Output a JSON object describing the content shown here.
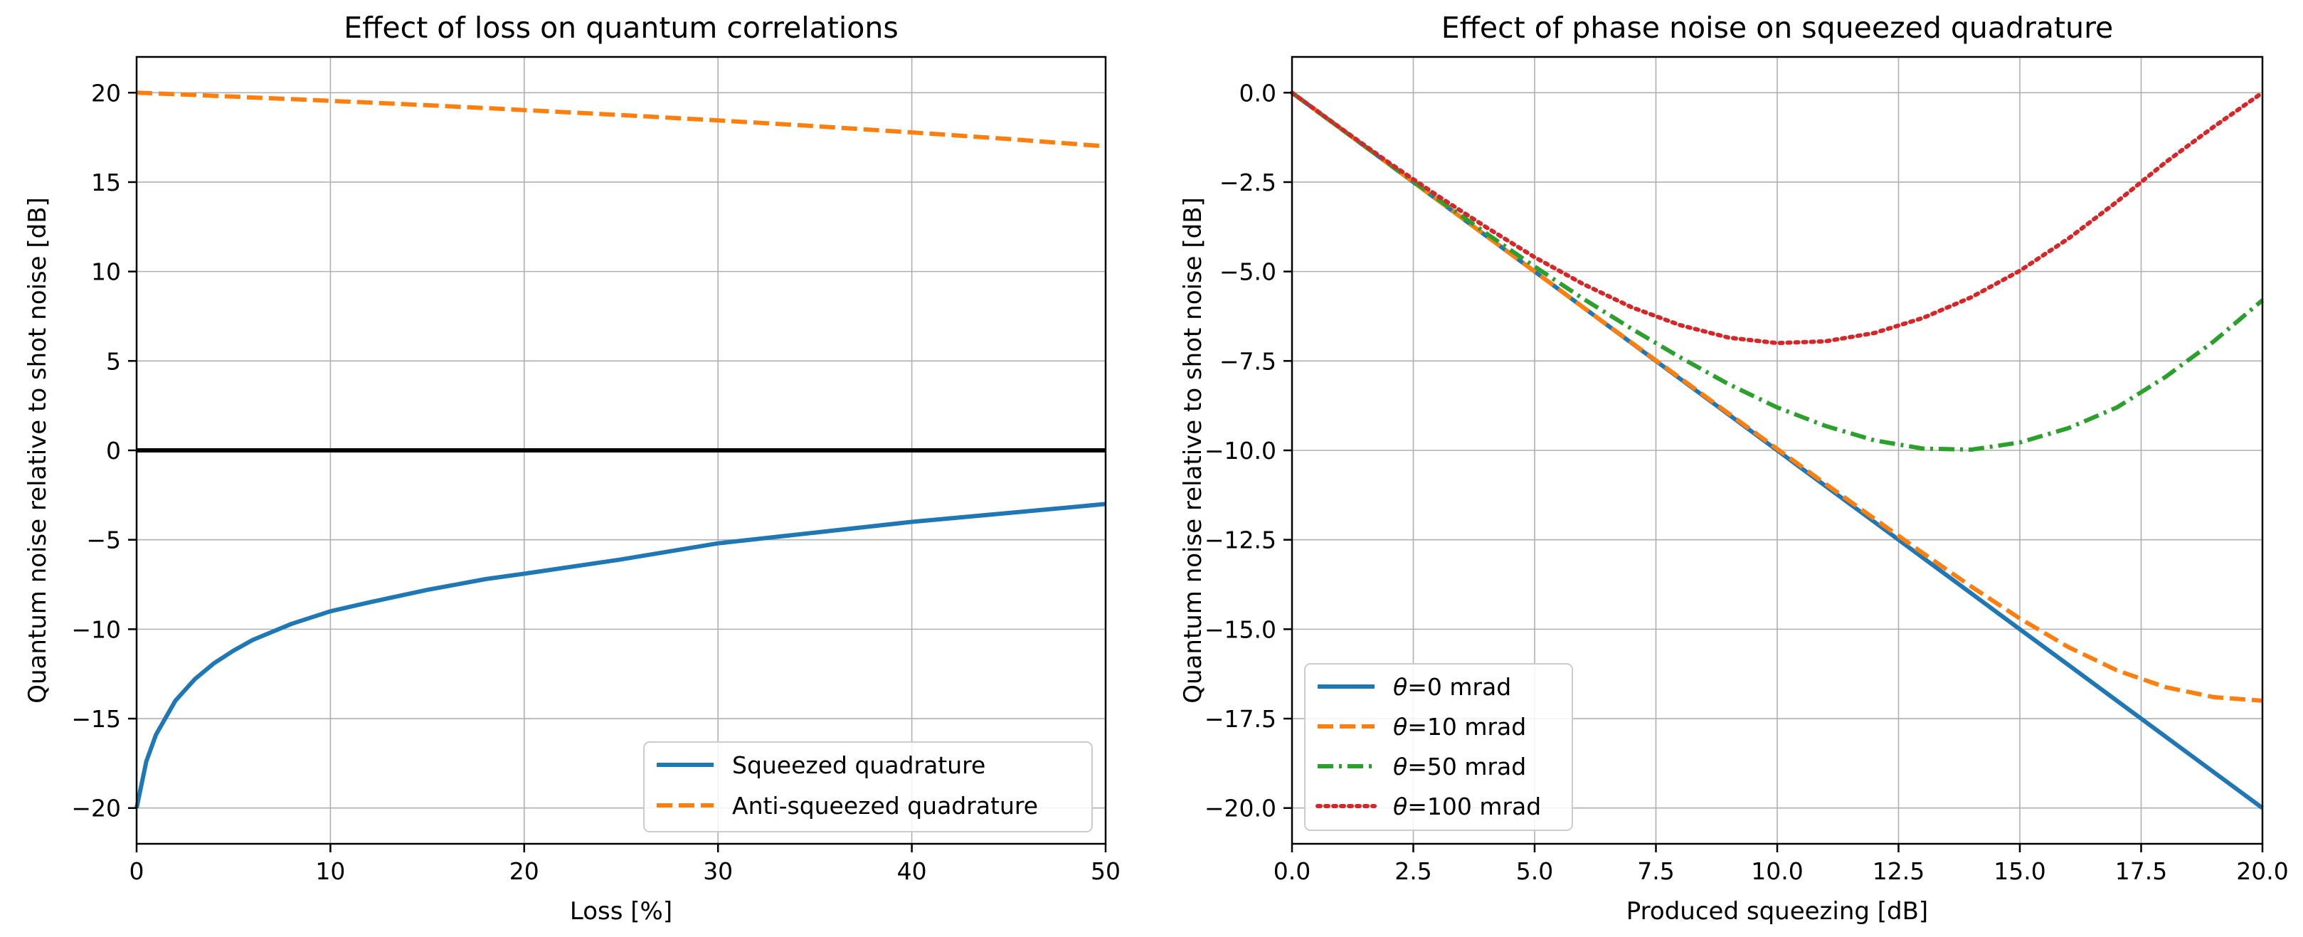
{
  "chart_data": [
    {
      "type": "line",
      "title": "Effect of loss on quantum correlations",
      "xlabel": "Loss [%]",
      "ylabel": "Quantum noise relative to shot noise [dB]",
      "xlim": [
        0,
        50
      ],
      "ylim": [
        -22,
        22
      ],
      "grid": true,
      "legend_location": "lower-right",
      "xticks": [
        0,
        10,
        20,
        30,
        40,
        50
      ],
      "xticklabels": [
        "0",
        "10",
        "20",
        "30",
        "40",
        "50"
      ],
      "yticks": [
        -20,
        -15,
        -10,
        -5,
        0,
        5,
        10,
        15,
        20
      ],
      "yticklabels": [
        "−20",
        "−15",
        "−10",
        "−5",
        "0",
        "5",
        "10",
        "15",
        "20"
      ],
      "reference_line": {
        "y": 0,
        "color": "#000000"
      },
      "x": [
        0,
        0.5,
        1,
        2,
        3,
        4,
        5,
        6,
        8,
        10,
        12,
        15,
        18,
        20,
        25,
        30,
        35,
        40,
        45,
        50
      ],
      "series": [
        {
          "name": "Squeezed quadrature",
          "color": "#1f77b4",
          "style": "solid",
          "values": [
            -20.0,
            -17.4,
            -15.9,
            -14.0,
            -12.8,
            -11.9,
            -11.2,
            -10.6,
            -9.7,
            -9.0,
            -8.5,
            -7.8,
            -7.2,
            -6.9,
            -6.1,
            -5.2,
            -4.6,
            -4.0,
            -3.5,
            -3.0
          ]
        },
        {
          "name": "Anti-squeezed quadrature",
          "color": "#ff7f0e",
          "style": "dashed",
          "values": [
            20.0,
            19.98,
            19.96,
            19.91,
            19.87,
            19.82,
            19.78,
            19.73,
            19.64,
            19.54,
            19.45,
            19.3,
            19.14,
            19.03,
            18.75,
            18.45,
            18.13,
            17.78,
            17.41,
            17.0
          ]
        }
      ]
    },
    {
      "type": "line",
      "title": "Effect of phase noise on squeezed quadrature",
      "xlabel": "Produced squeezing [dB]",
      "ylabel": "Quantum noise relative to shot noise [dB]",
      "xlim": [
        0,
        20
      ],
      "ylim": [
        -21,
        1
      ],
      "grid": true,
      "legend_location": "lower-left",
      "xticks": [
        0,
        2.5,
        5,
        7.5,
        10,
        12.5,
        15,
        17.5,
        20
      ],
      "xticklabels": [
        "0.0",
        "2.5",
        "5.0",
        "7.5",
        "10.0",
        "12.5",
        "15.0",
        "17.5",
        "20.0"
      ],
      "yticks": [
        0,
        -2.5,
        -5,
        -7.5,
        -10,
        -12.5,
        -15,
        -17.5,
        -20
      ],
      "yticklabels": [
        "0.0",
        "−2.5",
        "−5.0",
        "−7.5",
        "−10.0",
        "−12.5",
        "−15.0",
        "−17.5",
        "−20.0"
      ],
      "x": [
        0,
        1,
        2,
        3,
        4,
        5,
        6,
        7,
        8,
        9,
        10,
        11,
        12,
        13,
        14,
        15,
        16,
        17,
        18,
        19,
        20
      ],
      "series": [
        {
          "name": "θ=0 mrad",
          "symbol": "θ",
          "label_rest": "=0 mrad",
          "color": "#1f77b4",
          "style": "solid",
          "values": [
            0,
            -1,
            -2,
            -3,
            -4,
            -5,
            -6,
            -7,
            -8,
            -9,
            -10,
            -11,
            -12,
            -13,
            -14,
            -15,
            -16,
            -17,
            -18,
            -19,
            -20
          ]
        },
        {
          "name": "θ=10 mrad",
          "symbol": "θ",
          "label_rest": "=10 mrad",
          "color": "#ff7f0e",
          "style": "dashed",
          "values": [
            0,
            -1,
            -2,
            -3,
            -4,
            -5,
            -6,
            -6.99,
            -7.98,
            -8.97,
            -9.96,
            -10.94,
            -11.91,
            -12.87,
            -13.81,
            -14.7,
            -15.5,
            -16.15,
            -16.62,
            -16.9,
            -17.0
          ]
        },
        {
          "name": "θ=50 mrad",
          "symbol": "θ",
          "label_rest": "=50 mrad",
          "color": "#2ca02c",
          "style": "dashdot",
          "values": [
            0,
            -1,
            -1.99,
            -2.97,
            -3.93,
            -4.86,
            -5.76,
            -6.6,
            -7.4,
            -8.15,
            -8.8,
            -9.32,
            -9.72,
            -9.95,
            -9.98,
            -9.78,
            -9.38,
            -8.8,
            -7.95,
            -6.95,
            -5.8
          ]
        },
        {
          "name": "θ=100 mrad",
          "symbol": "θ",
          "label_rest": "=100 mrad",
          "color": "#d62728",
          "style": "dotted",
          "values": [
            0,
            -0.99,
            -1.96,
            -2.88,
            -3.76,
            -4.6,
            -5.35,
            -6.0,
            -6.5,
            -6.85,
            -7.0,
            -6.95,
            -6.72,
            -6.3,
            -5.72,
            -4.98,
            -4.08,
            -3.05,
            -1.95,
            -0.95,
            0.0
          ]
        }
      ]
    }
  ]
}
